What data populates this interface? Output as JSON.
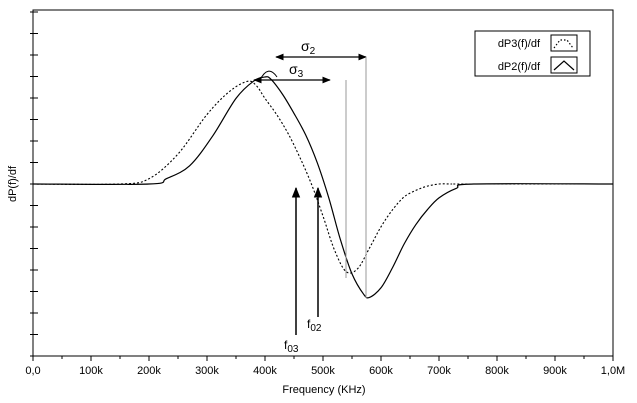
{
  "chart_data": {
    "type": "line",
    "title": "",
    "xlabel": "Frequency (KHz)",
    "ylabel": "dP(f)/df",
    "xlim": [
      0,
      1000000
    ],
    "x_ticks": [
      0,
      100000,
      200000,
      300000,
      400000,
      500000,
      600000,
      700000,
      800000,
      900000,
      1000000
    ],
    "x_tick_labels": [
      "0,0",
      "100k",
      "200k",
      "300k",
      "400k",
      "500k",
      "600k",
      "700k",
      "800k",
      "900k",
      "1,0M"
    ],
    "y_tick_labels_shown": false,
    "grid": false,
    "legend_position": "top-right",
    "series": [
      {
        "name": "dP3(f)/df",
        "style": "dotted",
        "x": [
          0,
          150000,
          200000,
          250000,
          300000,
          340000,
          370000,
          385000,
          400000,
          420000,
          440000,
          460000,
          480000,
          500000,
          520000,
          540000,
          560000,
          580000,
          600000,
          620000,
          640000,
          660000,
          680000,
          700000,
          720000,
          750000,
          1000000
        ],
        "y": [
          0,
          0,
          0.05,
          0.28,
          0.65,
          0.87,
          0.96,
          0.92,
          0.8,
          0.65,
          0.47,
          0.25,
          0.0,
          -0.3,
          -0.62,
          -0.82,
          -0.79,
          -0.6,
          -0.4,
          -0.24,
          -0.12,
          -0.06,
          -0.02,
          0,
          0,
          0,
          0
        ]
      },
      {
        "name": "dP2(f)/df",
        "style": "solid",
        "x": [
          0,
          200000,
          230000,
          270000,
          310000,
          350000,
          380000,
          400000,
          410000,
          430000,
          450000,
          470000,
          490000,
          510000,
          530000,
          550000,
          570000,
          580000,
          600000,
          620000,
          640000,
          660000,
          680000,
          700000,
          730000,
          760000,
          1000000
        ],
        "y": [
          0,
          0,
          0.05,
          0.17,
          0.45,
          0.8,
          0.96,
          1.0,
          0.98,
          0.84,
          0.66,
          0.46,
          0.2,
          -0.13,
          -0.52,
          -0.84,
          -1.03,
          -1.06,
          -0.97,
          -0.78,
          -0.56,
          -0.38,
          -0.24,
          -0.13,
          -0.04,
          0,
          0
        ]
      }
    ],
    "annotations": {
      "sigma2": {
        "label": "σ",
        "sub": "2"
      },
      "sigma3": {
        "label": "σ",
        "sub": "3"
      },
      "f02": {
        "label": "f",
        "sub": "02",
        "x": 520000
      },
      "f03": {
        "label": "f",
        "sub": "03",
        "x": 480000
      }
    },
    "colors": {
      "axis": "#000000",
      "series_dotted": "#000000",
      "series_solid": "#000000",
      "guide": "#9a9a9a"
    }
  }
}
